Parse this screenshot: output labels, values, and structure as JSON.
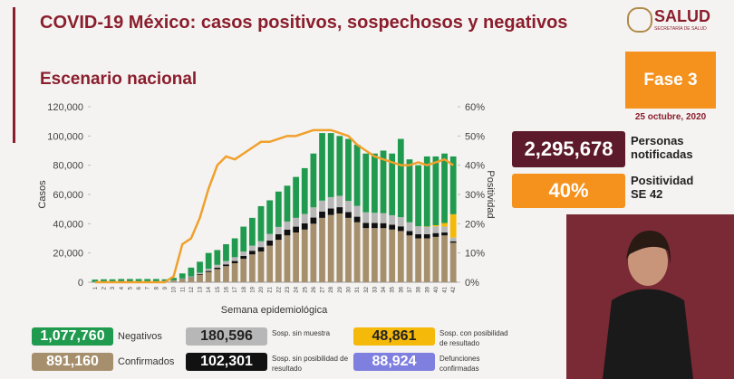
{
  "header": {
    "title": "COVID-19 México: casos positivos, sospechosos y negativos",
    "logo": "SALUD",
    "logo_sub": "SECRETARÍA DE SALUD",
    "subtitle": "Escenario nacional",
    "phase": "Fase 3",
    "date": "25 octubre, 2020"
  },
  "stats": [
    {
      "value": "2,295,678",
      "label": "Personas notificadas"
    },
    {
      "value": "40%",
      "label": "Positividad SE 42"
    }
  ],
  "chart_data": {
    "type": "bar",
    "stacked": true,
    "x_label": "Semana epidemiológica",
    "y_label": "Casos",
    "y2_label": "Positividad",
    "categories": [
      "1",
      "2",
      "3",
      "4",
      "5",
      "6",
      "7",
      "8",
      "9",
      "10",
      "11",
      "12",
      "13",
      "14",
      "15",
      "16",
      "17",
      "18",
      "19",
      "20",
      "21",
      "22",
      "23",
      "24",
      "25",
      "26",
      "27",
      "28",
      "29",
      "30",
      "31",
      "32",
      "33",
      "34",
      "35",
      "36",
      "37",
      "38",
      "39",
      "40",
      "41",
      "42"
    ],
    "ylim": [
      0,
      120000
    ],
    "yticks": [
      {
        "value": 0,
        "label": "0"
      },
      {
        "value": 20000,
        "label": "20,000"
      },
      {
        "value": 40000,
        "label": "40,000"
      },
      {
        "value": 60000,
        "label": "60,000"
      },
      {
        "value": 80000,
        "label": "80,000"
      },
      {
        "value": 100000,
        "label": "100,000"
      },
      {
        "value": 120000,
        "label": "120,000"
      }
    ],
    "y2lim": [
      0,
      60
    ],
    "y2ticks": [
      {
        "value": 0,
        "label": "0%"
      },
      {
        "value": 10,
        "label": "10%"
      },
      {
        "value": 20,
        "label": "20%"
      },
      {
        "value": 30,
        "label": "30%"
      },
      {
        "value": 40,
        "label": "40%"
      },
      {
        "value": 50,
        "label": "50%"
      },
      {
        "value": 60,
        "label": "60%"
      }
    ],
    "series": [
      {
        "name": "Confirmados",
        "total": "891,160",
        "color": "#a68f6c",
        "values": [
          100,
          100,
          150,
          200,
          250,
          300,
          400,
          500,
          700,
          1000,
          2000,
          3000,
          5000,
          7000,
          9000,
          11000,
          13000,
          16000,
          19000,
          21000,
          25000,
          29000,
          32000,
          34000,
          36000,
          40000,
          44000,
          46000,
          47000,
          44000,
          41000,
          37000,
          37000,
          37000,
          36000,
          35000,
          32000,
          30000,
          30000,
          31000,
          32000,
          27000
        ]
      },
      {
        "name": "Sosp. sin posibilidad de resultado",
        "total": "102,301",
        "color": "#111111",
        "values": [
          0,
          0,
          0,
          0,
          0,
          0,
          0,
          0,
          50,
          100,
          200,
          300,
          500,
          700,
          900,
          1200,
          1500,
          2000,
          2500,
          3000,
          3500,
          3800,
          4000,
          4000,
          4200,
          4200,
          4300,
          4400,
          4300,
          4000,
          3800,
          3600,
          3500,
          3400,
          3300,
          3200,
          3000,
          2800,
          2800,
          2600,
          2000,
          1000
        ]
      },
      {
        "name": "Sosp. sin muestra",
        "total": "180,596",
        "color": "#b7b7b7",
        "values": [
          100,
          100,
          100,
          100,
          100,
          100,
          100,
          100,
          150,
          200,
          400,
          700,
          1000,
          1500,
          2000,
          2300,
          2600,
          3000,
          3500,
          4000,
          4500,
          5000,
          5500,
          6000,
          6500,
          7000,
          7500,
          7800,
          7800,
          7600,
          7400,
          7200,
          7000,
          6800,
          6500,
          6300,
          6000,
          5500,
          5000,
          4600,
          4000,
          2500
        ]
      },
      {
        "name": "Sosp. con posibilidad de resultado",
        "total": "48,861",
        "color": "#f5b90a",
        "values": [
          0,
          0,
          0,
          0,
          0,
          0,
          0,
          0,
          0,
          0,
          0,
          0,
          0,
          0,
          0,
          0,
          0,
          0,
          0,
          0,
          0,
          0,
          0,
          0,
          0,
          0,
          0,
          0,
          0,
          0,
          0,
          0,
          0,
          0,
          0,
          0,
          0,
          0,
          300,
          800,
          2500,
          16000
        ]
      },
      {
        "name": "Negativos",
        "total": "1,077,760",
        "color": "#1f9a4e",
        "values": [
          1600,
          1800,
          1750,
          1900,
          1850,
          1800,
          1700,
          1600,
          1100,
          1700,
          3400,
          6000,
          7500,
          10800,
          10100,
          11500,
          12900,
          17000,
          19000,
          24000,
          23000,
          24200,
          24500,
          28000,
          31300,
          36800,
          46200,
          43800,
          40900,
          42400,
          41800,
          40200,
          40500,
          42800,
          42200,
          53500,
          43000,
          41700,
          47900,
          47000,
          47500,
          39500
        ]
      }
    ],
    "positivity": {
      "axis": "y2",
      "color": "#f0a02c",
      "values": [
        0,
        0,
        0,
        0,
        0,
        0,
        0,
        0,
        0,
        2,
        13,
        15,
        22,
        32,
        40,
        43,
        42,
        44,
        46,
        48,
        48,
        49,
        50,
        50,
        51,
        52,
        52,
        52,
        51,
        50,
        47,
        45,
        43,
        42,
        41,
        40,
        40,
        41,
        40,
        41,
        42,
        40
      ]
    },
    "deaths": {
      "name": "Defunciones confirmadas",
      "total": "88,924",
      "color": "#7f7fe0"
    }
  }
}
